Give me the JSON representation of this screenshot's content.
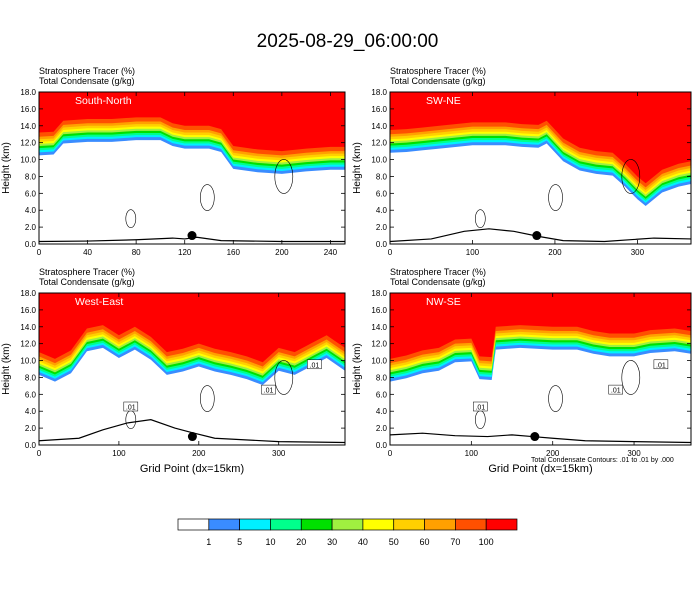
{
  "title": "2025-08-29_06:00:00",
  "colors": {
    "bins": [
      "#ffffff",
      "#3a8cff",
      "#00f0ff",
      "#00ff8c",
      "#00e000",
      "#a0f040",
      "#ffff00",
      "#ffd000",
      "#ffa000",
      "#ff5000",
      "#ff0000"
    ],
    "contour": "#000000",
    "frame": "#000000"
  },
  "colorbar": {
    "labels": [
      "1",
      "5",
      "10",
      "20",
      "30",
      "40",
      "50",
      "60",
      "70",
      "100"
    ]
  },
  "footnote": "Total Condensate Contours: .01 to .01 by .000",
  "chart_data": [
    {
      "type": "heatmap",
      "panel_label": "South-North",
      "variable_labels": [
        "Stratosphere Tracer   (%)",
        "Total Condensate   (g/kg)"
      ],
      "ylabel": "Height (km)",
      "xlabel": "",
      "xlim": [
        0,
        252
      ],
      "ylim": [
        0,
        18
      ],
      "xticks": [
        "0",
        "40",
        "80",
        "120",
        "160",
        "200",
        "240"
      ],
      "yticks": [
        "0.0",
        "2.0",
        "4.0",
        "6.0",
        "8.0",
        "10.0",
        "12.0",
        "14.0",
        "16.0",
        "18.0"
      ],
      "tropopause_km": [
        [
          0,
          13.2
        ],
        [
          12,
          13.3
        ],
        [
          20,
          14.6
        ],
        [
          40,
          14.8
        ],
        [
          60,
          14.8
        ],
        [
          80,
          15.0
        ],
        [
          100,
          15.0
        ],
        [
          110,
          14.3
        ],
        [
          120,
          14.0
        ],
        [
          140,
          14.0
        ],
        [
          150,
          13.6
        ],
        [
          160,
          11.6
        ],
        [
          180,
          11.2
        ],
        [
          200,
          11.0
        ],
        [
          220,
          11.3
        ],
        [
          240,
          11.5
        ],
        [
          252,
          11.5
        ]
      ],
      "terrain_km": [
        [
          0,
          0.3
        ],
        [
          40,
          0.35
        ],
        [
          80,
          0.5
        ],
        [
          110,
          0.7
        ],
        [
          120,
          0.6
        ],
        [
          130,
          0.8
        ],
        [
          150,
          0.4
        ],
        [
          200,
          0.3
        ],
        [
          252,
          0.3
        ]
      ],
      "marker": [
        126,
        1.0
      ],
      "contour_labels": []
    },
    {
      "type": "heatmap",
      "panel_label": "SW-NE",
      "variable_labels": [
        "Stratosphere Tracer   (%)",
        "Total Condensate   (g/kg)"
      ],
      "ylabel": "Height (km)",
      "xlabel": "",
      "xlim": [
        0,
        365
      ],
      "ylim": [
        0,
        18
      ],
      "xticks": [
        "0",
        "100",
        "200",
        "300"
      ],
      "yticks": [
        "0.0",
        "2.0",
        "4.0",
        "6.0",
        "8.0",
        "10.0",
        "12.0",
        "14.0",
        "16.0",
        "18.0"
      ],
      "tropopause_km": [
        [
          0,
          13.5
        ],
        [
          20,
          13.6
        ],
        [
          40,
          13.8
        ],
        [
          60,
          14.0
        ],
        [
          100,
          14.4
        ],
        [
          140,
          14.4
        ],
        [
          160,
          14.2
        ],
        [
          180,
          14.1
        ],
        [
          190,
          14.6
        ],
        [
          210,
          12.5
        ],
        [
          230,
          11.4
        ],
        [
          250,
          11.0
        ],
        [
          270,
          10.8
        ],
        [
          285,
          9.5
        ],
        [
          300,
          8.0
        ],
        [
          310,
          7.2
        ],
        [
          330,
          8.8
        ],
        [
          350,
          9.5
        ],
        [
          365,
          9.8
        ]
      ],
      "terrain_km": [
        [
          0,
          0.3
        ],
        [
          50,
          0.6
        ],
        [
          90,
          1.5
        ],
        [
          120,
          1.8
        ],
        [
          150,
          1.5
        ],
        [
          180,
          0.9
        ],
        [
          210,
          0.4
        ],
        [
          260,
          0.3
        ],
        [
          320,
          0.7
        ],
        [
          365,
          0.6
        ]
      ],
      "marker": [
        178,
        1.0
      ],
      "contour_labels": []
    },
    {
      "type": "heatmap",
      "panel_label": "West-East",
      "variable_labels": [
        "Stratosphere Tracer   (%)",
        "Total Condensate   (g/kg)"
      ],
      "ylabel": "Height (km)",
      "xlabel": "Grid Point (dx=15km)",
      "xlim": [
        0,
        383
      ],
      "ylim": [
        0,
        18
      ],
      "xticks": [
        "0",
        "100",
        "200",
        "300"
      ],
      "yticks": [
        "0.0",
        "2.0",
        "4.0",
        "6.0",
        "8.0",
        "10.0",
        "12.0",
        "14.0",
        "16.0",
        "18.0"
      ],
      "tropopause_km": [
        [
          0,
          11.0
        ],
        [
          20,
          10.2
        ],
        [
          40,
          11.2
        ],
        [
          60,
          13.8
        ],
        [
          80,
          14.2
        ],
        [
          100,
          13.0
        ],
        [
          120,
          14.0
        ],
        [
          140,
          12.8
        ],
        [
          160,
          11.0
        ],
        [
          180,
          11.4
        ],
        [
          200,
          12.0
        ],
        [
          220,
          11.4
        ],
        [
          240,
          11.0
        ],
        [
          260,
          10.5
        ],
        [
          280,
          9.8
        ],
        [
          300,
          11.5
        ],
        [
          320,
          11.0
        ],
        [
          340,
          12.0
        ],
        [
          360,
          13.0
        ],
        [
          383,
          11.5
        ]
      ],
      "terrain_km": [
        [
          0,
          0.5
        ],
        [
          50,
          0.8
        ],
        [
          80,
          1.8
        ],
        [
          110,
          2.6
        ],
        [
          140,
          3.0
        ],
        [
          170,
          2.0
        ],
        [
          190,
          1.5
        ],
        [
          220,
          0.8
        ],
        [
          300,
          0.4
        ],
        [
          383,
          0.3
        ]
      ],
      "marker": [
        192,
        1.0
      ],
      "contour_labels": [
        ".01",
        ".01",
        ".01"
      ]
    },
    {
      "type": "heatmap",
      "panel_label": "NW-SE",
      "variable_labels": [
        "Stratosphere Tracer   (%)",
        "Total Condensate   (g/kg)"
      ],
      "ylabel": "Height (km)",
      "xlabel": "Grid Point (dx=15km)",
      "xlim": [
        0,
        370
      ],
      "ylim": [
        0,
        18
      ],
      "xticks": [
        "0",
        "100",
        "200",
        "300"
      ],
      "yticks": [
        "0.0",
        "2.0",
        "4.0",
        "6.0",
        "8.0",
        "10.0",
        "12.0",
        "14.0",
        "16.0",
        "18.0"
      ],
      "tropopause_km": [
        [
          0,
          10.2
        ],
        [
          20,
          10.6
        ],
        [
          40,
          11.2
        ],
        [
          60,
          11.5
        ],
        [
          80,
          12.5
        ],
        [
          100,
          12.6
        ],
        [
          110,
          10.5
        ],
        [
          125,
          10.4
        ],
        [
          130,
          14.0
        ],
        [
          160,
          14.2
        ],
        [
          200,
          14.0
        ],
        [
          230,
          14.0
        ],
        [
          250,
          13.5
        ],
        [
          270,
          13.2
        ],
        [
          300,
          13.2
        ],
        [
          320,
          13.6
        ],
        [
          350,
          13.8
        ],
        [
          370,
          13.5
        ]
      ],
      "terrain_km": [
        [
          0,
          1.2
        ],
        [
          40,
          1.4
        ],
        [
          80,
          1.1
        ],
        [
          120,
          1.0
        ],
        [
          150,
          1.2
        ],
        [
          175,
          1.0
        ],
        [
          200,
          0.8
        ],
        [
          240,
          0.5
        ],
        [
          300,
          0.4
        ],
        [
          370,
          0.3
        ]
      ],
      "marker": [
        178,
        1.0
      ],
      "contour_labels": [
        ".01",
        ".01",
        ".01"
      ]
    }
  ]
}
